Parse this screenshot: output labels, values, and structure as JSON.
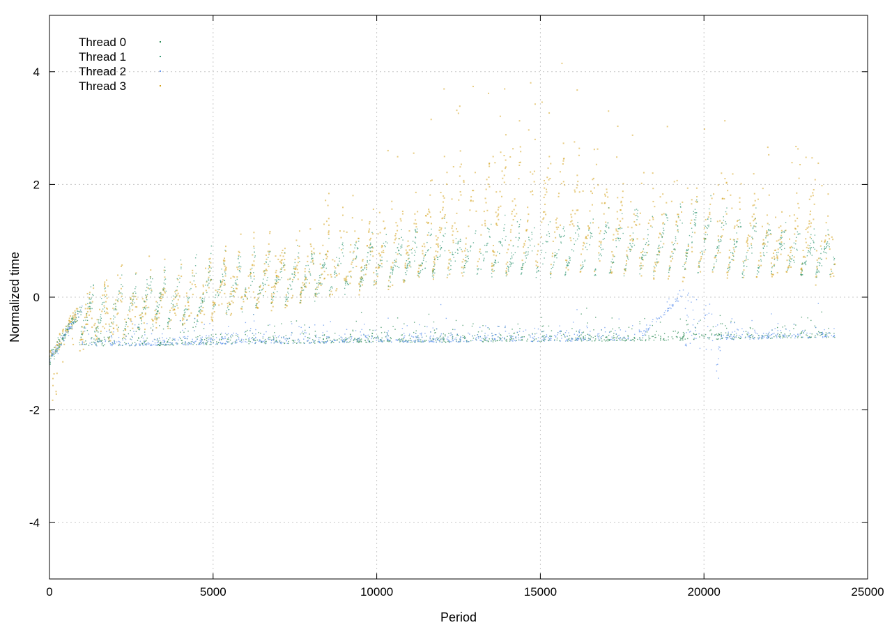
{
  "chart_data": {
    "type": "scatter",
    "title": "",
    "xlabel": "Period",
    "ylabel": "Normalized time",
    "xlim": [
      0,
      25000
    ],
    "ylim": [
      -5,
      5
    ],
    "xticks": [
      0,
      5000,
      10000,
      15000,
      20000,
      25000
    ],
    "xtick_labels": [
      "0",
      "5000",
      "10000",
      "15000",
      "20000",
      "25000"
    ],
    "yticks": [
      -4,
      -2,
      0,
      2,
      4
    ],
    "ytick_labels": [
      "-4",
      "-2",
      "0",
      "2",
      "4"
    ],
    "grid": true,
    "legend_position": "top-left",
    "series": [
      {
        "name": "Thread 0",
        "color": "#2e8b57",
        "points_description": "dense band near -0.8 from period ~1000 to ~24000, plus sawtooth bursts rising to ~1.5",
        "x": [
          0,
          500,
          1000,
          2000,
          4000,
          6000,
          8000,
          10000,
          12000,
          14000,
          16000,
          18000,
          19500,
          20500,
          22000,
          24000
        ],
        "y": [
          -1.1,
          -0.5,
          -0.85,
          -0.88,
          -0.85,
          -0.83,
          -0.82,
          -0.8,
          -0.8,
          -0.79,
          -0.78,
          -0.78,
          -0.77,
          -0.75,
          -0.74,
          -0.72
        ]
      },
      {
        "name": "Thread 1",
        "color": "#3a9b78",
        "points_description": "sawtooth pattern rising from ~-0.5 to ~2 over periods, repeating every ~450 periods",
        "x": [
          0,
          500,
          1000,
          2000,
          4000,
          6000,
          8000,
          10000,
          12000,
          14000,
          16000,
          18000,
          20000,
          22000,
          24000
        ],
        "y": [
          -1.0,
          -0.4,
          -0.2,
          0.0,
          0.2,
          0.4,
          0.6,
          0.8,
          0.9,
          1.0,
          1.0,
          1.2,
          1.3,
          1.0,
          0.9
        ]
      },
      {
        "name": "Thread 2",
        "color": "#6495ed",
        "points_description": "dense band near -0.8 with scatter up to ~-0.3; around periods 19500-20500 jumps to ~0",
        "x": [
          0,
          500,
          1000,
          2000,
          4000,
          6000,
          8000,
          10000,
          12000,
          14000,
          16000,
          18000,
          19400,
          19800,
          20200,
          20500,
          22000,
          24000
        ],
        "y": [
          -1.05,
          -0.45,
          -0.87,
          -0.87,
          -0.85,
          -0.83,
          -0.82,
          -0.8,
          -0.8,
          -0.79,
          -0.78,
          -0.77,
          0.0,
          0.0,
          -0.05,
          -0.76,
          -0.74,
          -0.72
        ]
      },
      {
        "name": "Thread 3",
        "color": "#d4a017",
        "points_description": "sawtooth pattern starting near -1 growing to spikes up to ~5 by period 13000-17000",
        "x": [
          0,
          500,
          1000,
          2000,
          4000,
          6000,
          8000,
          10000,
          12000,
          14000,
          16000,
          18000,
          20000,
          22000,
          23500,
          24000
        ],
        "y": [
          -1.05,
          -0.45,
          -0.3,
          -0.1,
          0.1,
          0.4,
          0.6,
          1.0,
          1.5,
          2.0,
          1.8,
          1.2,
          1.5,
          1.2,
          1.5,
          0.6
        ]
      }
    ]
  }
}
